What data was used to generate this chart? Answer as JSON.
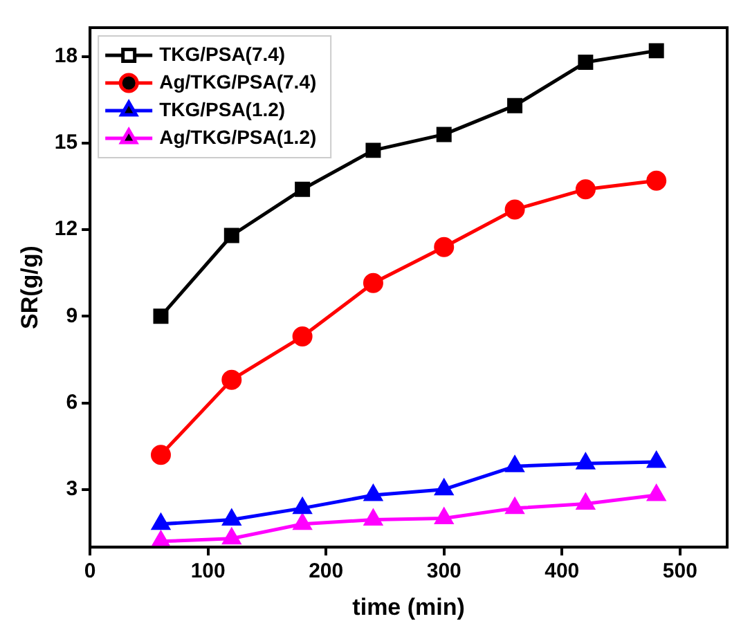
{
  "chart_data": {
    "type": "line",
    "xlabel": "time (min)",
    "ylabel": "SR(g/g)",
    "x": [
      60,
      120,
      180,
      240,
      300,
      360,
      420,
      480
    ],
    "series": [
      {
        "name": "TKG/PSA(7.4)",
        "color": "#000000",
        "marker": "square",
        "values": [
          9.0,
          11.8,
          13.4,
          14.75,
          15.3,
          16.3,
          17.8,
          18.2
        ]
      },
      {
        "name": "Ag/TKG/PSA(7.4)",
        "color": "#ff0000",
        "marker": "circle",
        "values": [
          4.2,
          6.8,
          8.3,
          10.15,
          11.4,
          12.7,
          13.4,
          13.7
        ]
      },
      {
        "name": "TKG/PSA(1.2)",
        "color": "#0000ff",
        "marker": "triangle",
        "values": [
          1.8,
          1.95,
          2.35,
          2.8,
          3.0,
          3.8,
          3.9,
          3.95
        ]
      },
      {
        "name": "Ag/TKG/PSA(1.2)",
        "color": "#ff00ff",
        "marker": "triangle",
        "values": [
          1.2,
          1.3,
          1.8,
          1.95,
          2.0,
          2.35,
          2.5,
          2.8
        ]
      }
    ],
    "xlim": [
      0,
      540
    ],
    "xticks": [
      0,
      100,
      200,
      300,
      400,
      500
    ],
    "ylim": [
      1,
      19
    ],
    "yticks": [
      3,
      6,
      9,
      12,
      15,
      18
    ],
    "grid": false,
    "legend": "top left",
    "line_style": "solid"
  }
}
